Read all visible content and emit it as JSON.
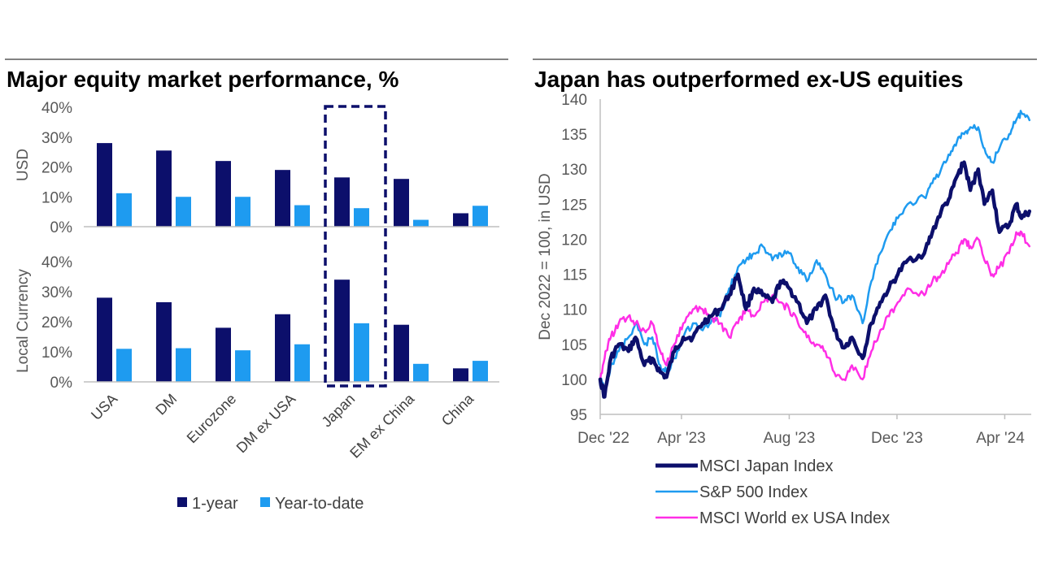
{
  "chart_data": [
    {
      "type": "bar",
      "title": "Major equity market performance, %",
      "categories": [
        "USA",
        "DM",
        "Eurozone",
        "DM ex USA",
        "Japan",
        "EM ex China",
        "China"
      ],
      "highlight_category": "Japan",
      "yticks": [
        "40%",
        "30%",
        "20%",
        "10%",
        "0%"
      ],
      "ylim": [
        0,
        40
      ],
      "legend_position": "bottom",
      "panels": [
        {
          "ylabel": "USD",
          "series": [
            {
              "name": "1-year",
              "color": "#0c0f6b",
              "values": [
                28,
                25.5,
                22,
                19,
                16.5,
                16,
                4.5
              ]
            },
            {
              "name": "Year-to-date",
              "color": "#1e9bf0",
              "values": [
                11.2,
                10,
                10,
                7.2,
                6.2,
                2.3,
                7
              ]
            }
          ]
        },
        {
          "ylabel": "Local Currency",
          "series": [
            {
              "name": "1-year",
              "color": "#0c0f6b",
              "values": [
                28,
                26.5,
                18,
                22.5,
                34,
                19,
                4.5
              ]
            },
            {
              "name": "Year-to-date",
              "color": "#1e9bf0",
              "values": [
                11,
                11.2,
                10.5,
                12.5,
                19.5,
                6,
                7
              ]
            }
          ]
        }
      ],
      "legend": [
        {
          "name": "1-year",
          "color": "#0c0f6b"
        },
        {
          "name": "Year-to-date",
          "color": "#1e9bf0"
        }
      ]
    },
    {
      "type": "line",
      "title": "Japan has outperformed ex-US equities",
      "ylabel": "Dec 2022 = 100, in USD",
      "ylim": [
        95,
        140
      ],
      "yticks": [
        "140",
        "135",
        "130",
        "125",
        "120",
        "115",
        "110",
        "105",
        "100",
        "95"
      ],
      "x_range": [
        "2022-12-30",
        "2024-05-01"
      ],
      "xticks": [
        {
          "date": "2022-12-30",
          "label": "Dec '22"
        },
        {
          "date": "2023-04-01",
          "label": "Apr '23"
        },
        {
          "date": "2023-08-01",
          "label": "Aug '23"
        },
        {
          "date": "2023-12-01",
          "label": "Dec '23"
        },
        {
          "date": "2024-04-01",
          "label": "Apr '24"
        }
      ],
      "legend_position": "bottom",
      "series": [
        {
          "name": "MSCI Japan Index",
          "color": "#0c0f6b",
          "width": 4.5,
          "points": [
            [
              "2022-12-30",
              100
            ],
            [
              "2023-01-04",
              97.5
            ],
            [
              "2023-01-11",
              103
            ],
            [
              "2023-01-20",
              105
            ],
            [
              "2023-01-31",
              104
            ],
            [
              "2023-02-08",
              106
            ],
            [
              "2023-02-18",
              102
            ],
            [
              "2023-02-27",
              103
            ],
            [
              "2023-03-08",
              101
            ],
            [
              "2023-03-15",
              100.3
            ],
            [
              "2023-03-24",
              104
            ],
            [
              "2023-04-03",
              106
            ],
            [
              "2023-04-14",
              106
            ],
            [
              "2023-04-25",
              108
            ],
            [
              "2023-05-04",
              109
            ],
            [
              "2023-05-15",
              110
            ],
            [
              "2023-05-25",
              112
            ],
            [
              "2023-06-04",
              115
            ],
            [
              "2023-06-13",
              110
            ],
            [
              "2023-06-22",
              113
            ],
            [
              "2023-07-02",
              112
            ],
            [
              "2023-07-13",
              111
            ],
            [
              "2023-07-22",
              114
            ],
            [
              "2023-08-01",
              113
            ],
            [
              "2023-08-11",
              111
            ],
            [
              "2023-08-21",
              108
            ],
            [
              "2023-09-01",
              110
            ],
            [
              "2023-09-11",
              112
            ],
            [
              "2023-09-21",
              107
            ],
            [
              "2023-10-02",
              104.5
            ],
            [
              "2023-10-11",
              106
            ],
            [
              "2023-10-23",
              103
            ],
            [
              "2023-11-02",
              108
            ],
            [
              "2023-11-12",
              111
            ],
            [
              "2023-11-22",
              113
            ],
            [
              "2023-12-02",
              115
            ],
            [
              "2023-12-13",
              117
            ],
            [
              "2024-01-01",
              118
            ],
            [
              "2024-01-10",
              121
            ],
            [
              "2024-01-20",
              124
            ],
            [
              "2024-01-30",
              126
            ],
            [
              "2024-02-07",
              129
            ],
            [
              "2024-02-15",
              131
            ],
            [
              "2024-02-22",
              127
            ],
            [
              "2024-03-02",
              130
            ],
            [
              "2024-03-09",
              125
            ],
            [
              "2024-03-18",
              127
            ],
            [
              "2024-03-26",
              121
            ],
            [
              "2024-04-06",
              122
            ],
            [
              "2024-04-14",
              125
            ],
            [
              "2024-04-20",
              123
            ],
            [
              "2024-04-29",
              124
            ]
          ]
        },
        {
          "name": "S&P 500 Index",
          "color": "#1e9bf0",
          "width": 2.5,
          "points": [
            [
              "2022-12-30",
              100
            ],
            [
              "2023-01-05",
              98.5
            ],
            [
              "2023-01-11",
              102
            ],
            [
              "2023-01-20",
              104
            ],
            [
              "2023-01-31",
              106
            ],
            [
              "2023-02-08",
              108
            ],
            [
              "2023-02-18",
              105
            ],
            [
              "2023-02-27",
              106
            ],
            [
              "2023-03-08",
              102
            ],
            [
              "2023-03-15",
              101
            ],
            [
              "2023-03-24",
              103
            ],
            [
              "2023-04-03",
              106
            ],
            [
              "2023-04-14",
              108
            ],
            [
              "2023-04-25",
              107
            ],
            [
              "2023-05-04",
              108
            ],
            [
              "2023-05-15",
              109
            ],
            [
              "2023-05-25",
              113
            ],
            [
              "2023-06-04",
              116
            ],
            [
              "2023-06-13",
              117
            ],
            [
              "2023-06-22",
              118
            ],
            [
              "2023-07-02",
              119
            ],
            [
              "2023-07-13",
              117
            ],
            [
              "2023-07-22",
              118
            ],
            [
              "2023-08-01",
              118
            ],
            [
              "2023-08-11",
              116
            ],
            [
              "2023-08-21",
              114
            ],
            [
              "2023-09-01",
              117
            ],
            [
              "2023-09-11",
              115
            ],
            [
              "2023-09-21",
              112
            ],
            [
              "2023-10-02",
              111
            ],
            [
              "2023-10-11",
              112
            ],
            [
              "2023-10-23",
              108
            ],
            [
              "2023-11-02",
              114
            ],
            [
              "2023-11-12",
              118
            ],
            [
              "2023-11-22",
              121
            ],
            [
              "2023-12-02",
              123
            ],
            [
              "2023-12-13",
              125
            ],
            [
              "2024-01-01",
              126
            ],
            [
              "2024-01-10",
              128
            ],
            [
              "2024-01-20",
              130
            ],
            [
              "2024-01-30",
              132
            ],
            [
              "2024-02-07",
              134
            ],
            [
              "2024-02-15",
              135
            ],
            [
              "2024-02-22",
              136
            ],
            [
              "2024-03-02",
              136
            ],
            [
              "2024-03-09",
              133
            ],
            [
              "2024-03-18",
              131
            ],
            [
              "2024-03-26",
              133
            ],
            [
              "2024-04-06",
              135
            ],
            [
              "2024-04-14",
              137
            ],
            [
              "2024-04-20",
              138
            ],
            [
              "2024-04-29",
              137
            ]
          ]
        },
        {
          "name": "MSCI World ex USA Index",
          "color": "#ff2ee6",
          "width": 2.5,
          "points": [
            [
              "2022-12-30",
              100
            ],
            [
              "2023-01-05",
              104
            ],
            [
              "2023-01-11",
              106
            ],
            [
              "2023-01-20",
              108
            ],
            [
              "2023-01-31",
              109
            ],
            [
              "2023-02-08",
              108
            ],
            [
              "2023-02-18",
              107
            ],
            [
              "2023-02-27",
              108
            ],
            [
              "2023-03-08",
              104
            ],
            [
              "2023-03-15",
              102
            ],
            [
              "2023-03-24",
              105
            ],
            [
              "2023-04-03",
              108
            ],
            [
              "2023-04-14",
              110
            ],
            [
              "2023-04-25",
              110
            ],
            [
              "2023-05-04",
              109
            ],
            [
              "2023-05-15",
              108
            ],
            [
              "2023-05-25",
              106
            ],
            [
              "2023-06-04",
              108
            ],
            [
              "2023-06-13",
              110
            ],
            [
              "2023-06-22",
              109
            ],
            [
              "2023-07-02",
              111
            ],
            [
              "2023-07-13",
              112
            ],
            [
              "2023-07-22",
              111
            ],
            [
              "2023-08-01",
              110
            ],
            [
              "2023-08-11",
              108
            ],
            [
              "2023-08-21",
              106
            ],
            [
              "2023-09-01",
              105
            ],
            [
              "2023-09-11",
              104
            ],
            [
              "2023-09-21",
              101
            ],
            [
              "2023-10-02",
              100
            ],
            [
              "2023-10-11",
              102
            ],
            [
              "2023-10-23",
              100
            ],
            [
              "2023-11-02",
              104
            ],
            [
              "2023-11-12",
              107
            ],
            [
              "2023-11-22",
              109
            ],
            [
              "2023-12-02",
              111
            ],
            [
              "2023-12-13",
              113
            ],
            [
              "2024-01-01",
              112
            ],
            [
              "2024-01-10",
              114
            ],
            [
              "2024-01-20",
              115
            ],
            [
              "2024-01-30",
              117
            ],
            [
              "2024-02-07",
              118
            ],
            [
              "2024-02-15",
              120
            ],
            [
              "2024-02-22",
              119
            ],
            [
              "2024-03-02",
              120
            ],
            [
              "2024-03-09",
              117
            ],
            [
              "2024-03-18",
              115
            ],
            [
              "2024-03-26",
              116
            ],
            [
              "2024-04-06",
              118
            ],
            [
              "2024-04-14",
              121
            ],
            [
              "2024-04-20",
              121
            ],
            [
              "2024-04-29",
              119
            ]
          ]
        }
      ]
    }
  ]
}
